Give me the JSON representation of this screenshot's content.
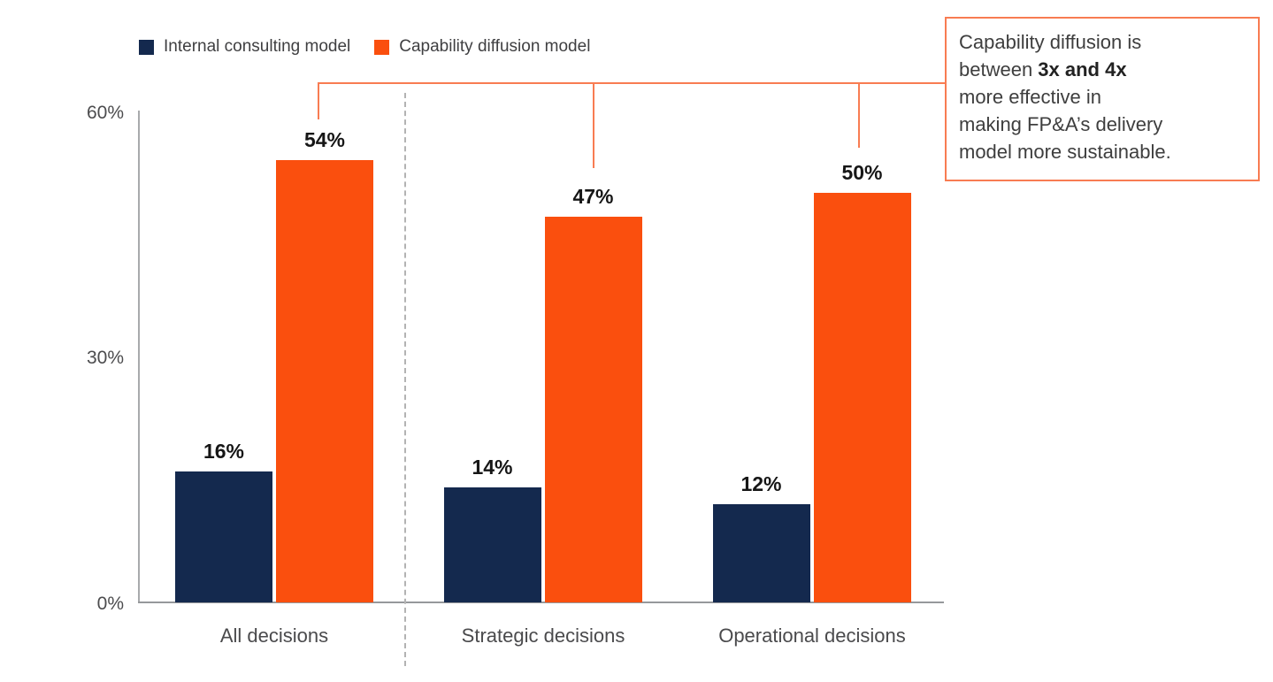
{
  "chart_data": {
    "type": "bar",
    "title": "",
    "categories": [
      "All decisions",
      "Strategic decisions",
      "Operational decisions"
    ],
    "series": [
      {
        "name": "Internal consulting model",
        "color": "#14294E",
        "values": [
          16,
          14,
          12
        ]
      },
      {
        "name": "Capability diffusion model",
        "color": "#FA4F0E",
        "values": [
          54,
          47,
          50
        ]
      }
    ],
    "value_label_suffix": "%",
    "yticks": [
      "0%",
      "30%",
      "60%"
    ],
    "ylim": [
      0,
      60
    ],
    "grid": false,
    "legend_position": "top-left",
    "separator_after_category_index": 0
  },
  "annotation": {
    "border_color": "#F87C52",
    "full_text": "Capability diffusion is between 3x and 4x more effective in making FP&A’s delivery model more sustainable.",
    "lines": {
      "l1": "Capability diffusion is",
      "l2_normal": "between ",
      "l2_bold": "3x and 4x",
      "l3": "more effective in",
      "l4": "making FP&A’s delivery",
      "l5": "model more sustainable."
    }
  },
  "colors": {
    "internal_consulting": "#14294E",
    "capability_diffusion": "#FA4F0E",
    "callout_orange": "#F87C52",
    "axis_gray": "#A8AAAC",
    "dashed_separator_gray": "#B3B3B3",
    "label_black": "#161616",
    "tick_gray": "#4C4C4E"
  }
}
